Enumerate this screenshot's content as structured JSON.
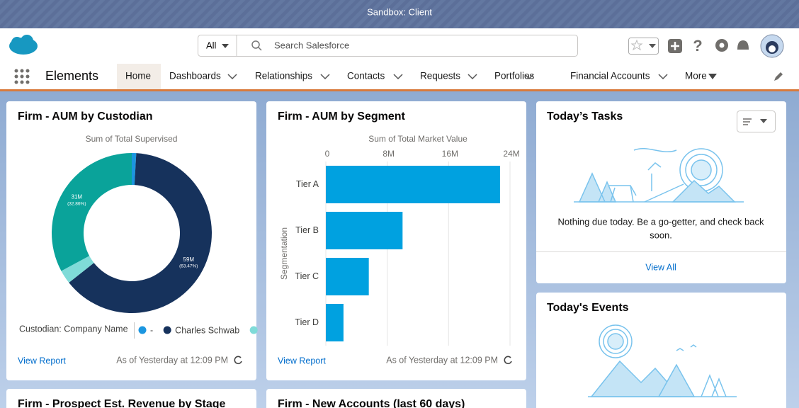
{
  "banner": {
    "title": "Sandbox: Client"
  },
  "header": {
    "search_scope": "All",
    "search_placeholder": "Search Salesforce"
  },
  "nav": {
    "app_name": "Elements",
    "tabs": [
      "Home",
      "Dashboards",
      "Relationships",
      "Contacts",
      "Requests",
      "Portfolios",
      "Financial Accounts"
    ],
    "more": "More"
  },
  "chart_data": [
    {
      "type": "pie",
      "donut": true,
      "title": "Firm - AUM by Custodian",
      "subtitle": "Sum of Total Supervised",
      "legend_title": "Custodian: Company Name",
      "categories": [
        "-",
        "Charles Schwab",
        null,
        null
      ],
      "values": [
        0.9,
        63.47,
        2.77,
        32.86
      ],
      "value_labels": [
        null,
        "(63.47%)",
        null,
        "(32.86%)"
      ],
      "amount_labels": [
        null,
        "59M",
        null,
        "31M"
      ],
      "colors": [
        "#1b96e0",
        "#16325c",
        "#7fdbd8",
        "#0aa39a"
      ],
      "footer_link": "View Report",
      "footer_timestamp": "As of Yesterday at 12:09 PM"
    },
    {
      "type": "bar",
      "orientation": "horizontal",
      "title": "Firm - AUM by Segment",
      "subtitle": "Sum of Total Market Value",
      "y_label": "Segmentation",
      "categories": [
        "Tier A",
        "Tier B",
        "Tier C",
        "Tier D"
      ],
      "values": [
        22.7,
        10,
        5.6,
        2.3
      ],
      "color": "#00a1e0",
      "xlim": [
        0,
        24
      ],
      "xticks": [
        0,
        {
          "value": 8,
          "label": "8M"
        },
        {
          "value": 16,
          "label": "16M"
        },
        {
          "value": 24,
          "label": "24M"
        }
      ],
      "grid": true,
      "footer_link": "View Report",
      "footer_timestamp": "As of Yesterday at 12:09 PM"
    }
  ],
  "tasks": {
    "title": "Today’s Tasks",
    "message_line1": "Nothing due today. Be a go-getter, and check back",
    "message_line2": "soon.",
    "link": "View All"
  },
  "events": {
    "title": "Today's Events"
  },
  "bottom_cards": [
    "Firm - Prospect Est. Revenue by Stage",
    "Firm - New Accounts (last 60 days)"
  ]
}
